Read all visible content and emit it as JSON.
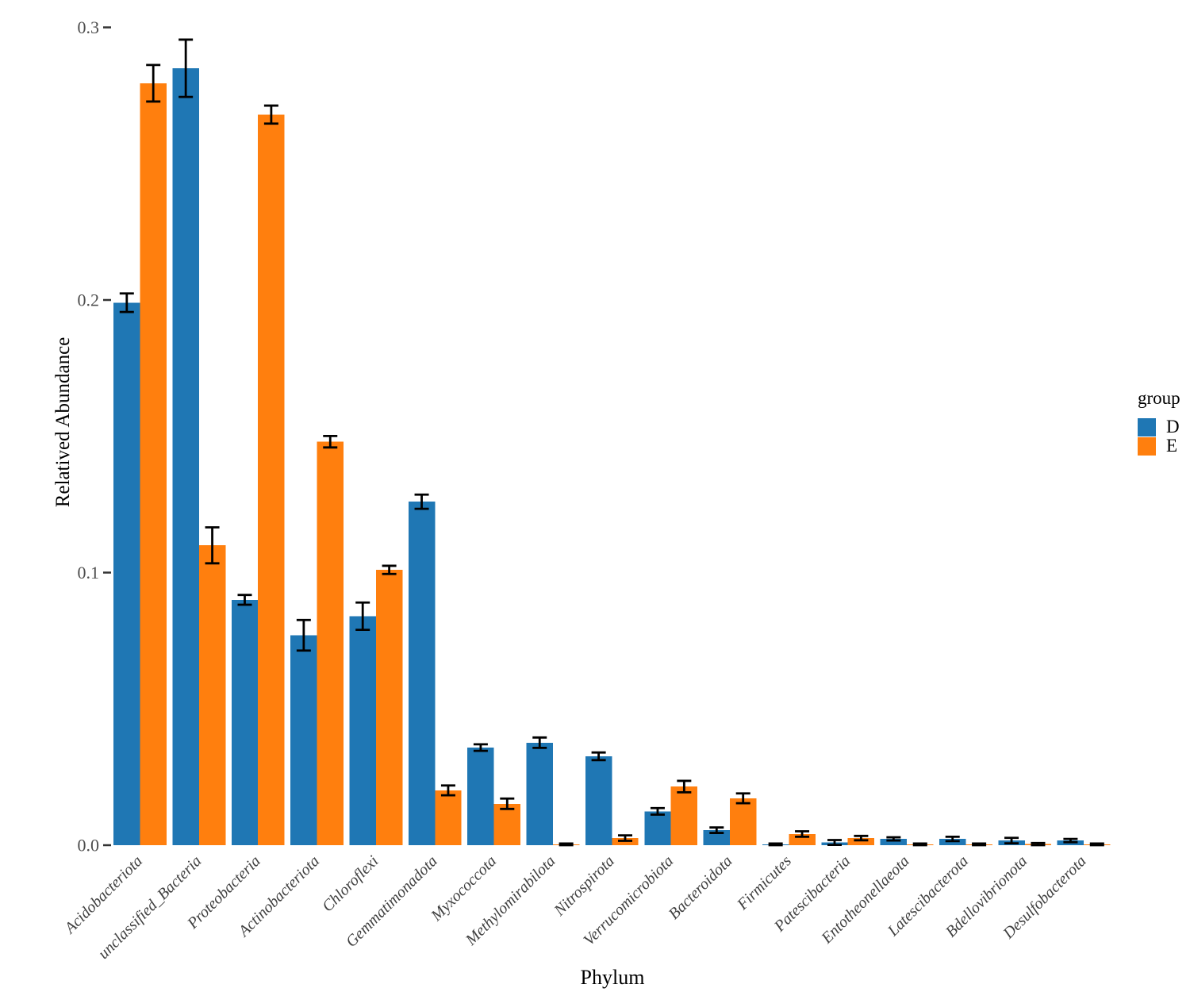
{
  "legend": {
    "title": "group",
    "items": [
      {
        "label": "D",
        "color": "#1f77b4"
      },
      {
        "label": "E",
        "color": "#ff7f0e"
      }
    ]
  },
  "chart_data": {
    "type": "bar",
    "title": "",
    "xlabel": "Phylum",
    "ylabel": "Relatived Abundance",
    "ylim": [
      0,
      0.3
    ],
    "y_ticks": [
      0.0,
      0.1,
      0.2,
      0.3
    ],
    "y_tick_labels": [
      "0.0",
      "0.1",
      "0.2",
      "0.3"
    ],
    "grid": false,
    "error_bars": true,
    "legend_title": "group",
    "legend_position": "right",
    "categories": [
      "Acidobacteriota",
      "unclassified_Bacteria",
      "Proteobacteria",
      "Actinobacteriota",
      "Chloroflexi",
      "Gemmatimonadota",
      "Myxococcota",
      "Methylomirabilota",
      "Nitrospirota",
      "Verrucomicrobiota",
      "Bacteroidota",
      "Firmicutes",
      "Patescibacteria",
      "Entotheonellaeota",
      "Latescibacterota",
      "Bdellovibrionota",
      "Desulfobacterota"
    ],
    "series": [
      {
        "name": "D",
        "color": "#1f77b4",
        "values": [
          0.199,
          0.285,
          0.09,
          0.077,
          0.084,
          0.126,
          0.0358,
          0.0376,
          0.0326,
          0.0124,
          0.0055,
          0.0003,
          0.001,
          0.0023,
          0.0023,
          0.0017,
          0.0017
        ],
        "errors": [
          0.0034,
          0.0105,
          0.0018,
          0.0056,
          0.005,
          0.0026,
          0.0012,
          0.0019,
          0.0014,
          0.0012,
          0.001,
          0.0003,
          0.0009,
          0.0006,
          0.0008,
          0.001,
          0.0006
        ]
      },
      {
        "name": "E",
        "color": "#ff7f0e",
        "values": [
          0.2795,
          0.11,
          0.268,
          0.148,
          0.101,
          0.0201,
          0.0152,
          0.0003,
          0.0026,
          0.0215,
          0.0172,
          0.0041,
          0.0026,
          0.0003,
          0.0003,
          0.0004,
          0.0003
        ],
        "errors": [
          0.0067,
          0.0066,
          0.0033,
          0.0021,
          0.0015,
          0.0018,
          0.0019,
          0.0003,
          0.001,
          0.0021,
          0.0018,
          0.001,
          0.0008,
          0.0003,
          0.0003,
          0.0004,
          0.0003
        ]
      }
    ]
  }
}
